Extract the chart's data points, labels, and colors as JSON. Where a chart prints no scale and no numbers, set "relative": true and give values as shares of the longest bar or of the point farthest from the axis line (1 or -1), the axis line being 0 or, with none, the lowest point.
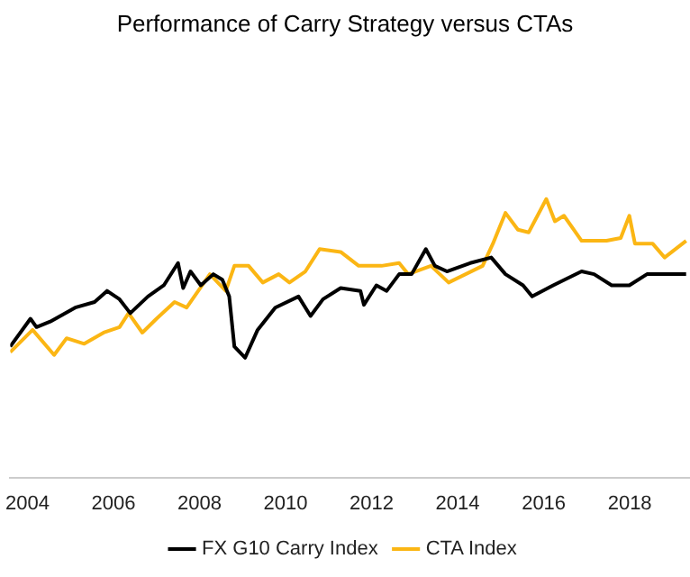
{
  "chart_data": {
    "type": "line",
    "title": "Performance of Carry Strategy versus CTAs",
    "relative": true,
    "xlim": [
      2003.6,
      2019.4
    ],
    "xticks": [
      2004,
      2006,
      2008,
      2010,
      2012,
      2014,
      2016,
      2018
    ],
    "grid": false,
    "legend": "bottom",
    "marker": "none",
    "line_style": "solid",
    "series": [
      {
        "name": "FX G10 Carry Index",
        "color": "#000000",
        "x": [
          2003.6,
          2004.07,
          2004.21,
          2004.53,
          2005.11,
          2005.56,
          2005.85,
          2006.14,
          2006.39,
          2006.8,
          2007.17,
          2007.5,
          2007.62,
          2007.79,
          2008.03,
          2008.32,
          2008.53,
          2008.69,
          2008.81,
          2009.06,
          2009.35,
          2009.76,
          2010.3,
          2010.58,
          2010.87,
          2011.28,
          2011.74,
          2011.82,
          2012.11,
          2012.35,
          2012.64,
          2012.93,
          2013.26,
          2013.47,
          2013.75,
          2014.29,
          2014.78,
          2015.11,
          2015.52,
          2015.73,
          2016.22,
          2016.88,
          2017.17,
          2017.58,
          2017.99,
          2018.4,
          2018.9,
          2019.31
        ],
        "values": [
          0.47,
          0.57,
          0.54,
          0.56,
          0.61,
          0.63,
          0.67,
          0.64,
          0.59,
          0.65,
          0.69,
          0.77,
          0.68,
          0.74,
          0.69,
          0.73,
          0.71,
          0.65,
          0.47,
          0.43,
          0.53,
          0.61,
          0.65,
          0.58,
          0.64,
          0.68,
          0.67,
          0.62,
          0.69,
          0.67,
          0.73,
          0.73,
          0.82,
          0.76,
          0.74,
          0.77,
          0.79,
          0.73,
          0.69,
          0.65,
          0.69,
          0.74,
          0.73,
          0.69,
          0.69,
          0.73,
          0.73,
          0.73
        ]
      },
      {
        "name": "CTA Index",
        "color": "#fbb614",
        "x": [
          2003.6,
          2004.12,
          2004.62,
          2004.91,
          2005.32,
          2005.77,
          2006.14,
          2006.35,
          2006.67,
          2007.0,
          2007.42,
          2007.7,
          2008.24,
          2008.61,
          2008.81,
          2009.14,
          2009.47,
          2009.84,
          2010.09,
          2010.46,
          2010.79,
          2011.28,
          2011.7,
          2012.23,
          2012.64,
          2012.85,
          2013.38,
          2013.79,
          2014.58,
          2014.82,
          2015.11,
          2015.4,
          2015.65,
          2016.06,
          2016.26,
          2016.47,
          2016.88,
          2017.46,
          2017.79,
          2017.99,
          2018.12,
          2018.53,
          2018.81,
          2019.31
        ],
        "values": [
          0.45,
          0.53,
          0.44,
          0.5,
          0.48,
          0.52,
          0.54,
          0.59,
          0.52,
          0.57,
          0.63,
          0.61,
          0.73,
          0.67,
          0.76,
          0.76,
          0.7,
          0.73,
          0.7,
          0.74,
          0.82,
          0.81,
          0.76,
          0.76,
          0.77,
          0.73,
          0.76,
          0.7,
          0.76,
          0.84,
          0.95,
          0.89,
          0.88,
          1,
          0.92,
          0.94,
          0.85,
          0.85,
          0.86,
          0.94,
          0.84,
          0.84,
          0.79,
          0.85
        ]
      }
    ]
  }
}
